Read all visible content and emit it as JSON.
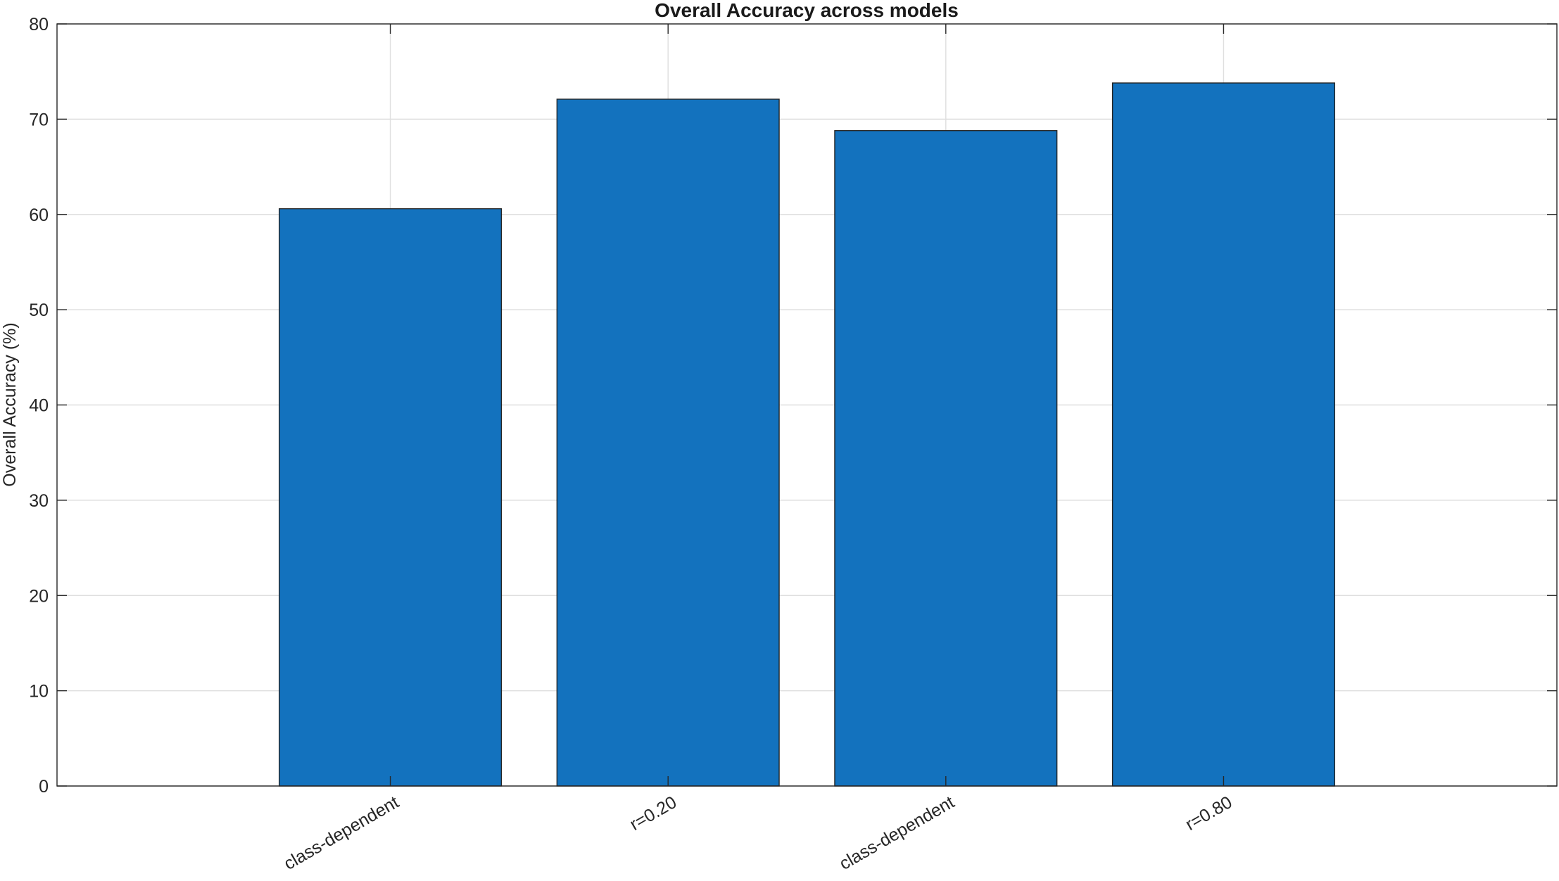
{
  "chart_data": {
    "type": "bar",
    "title": "Overall Accuracy across models",
    "ylabel": "Overall Accuracy (%)",
    "categories": [
      "class-dependent",
      "r=0.20",
      "class-dependent",
      "r=0.80"
    ],
    "values": [
      60.6,
      72.1,
      68.8,
      73.8
    ],
    "color": "#1372be",
    "ylim": [
      0,
      80
    ],
    "yticks": [
      0,
      10,
      20,
      30,
      40,
      50,
      60,
      70,
      80
    ],
    "grid": true
  }
}
